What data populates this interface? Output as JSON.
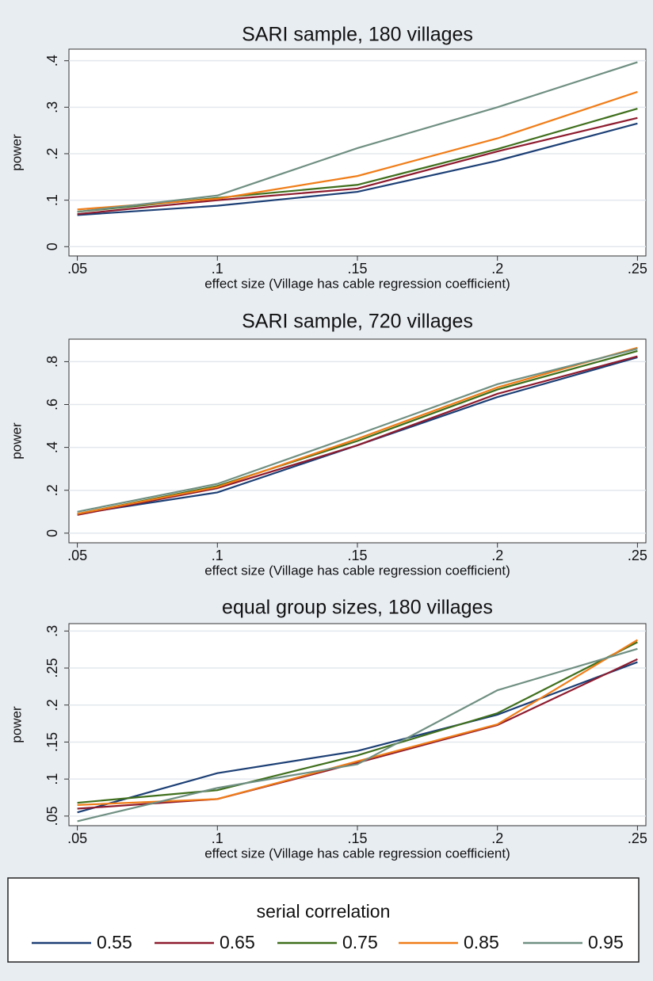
{
  "chart_data": [
    {
      "type": "line",
      "title": "SARI sample, 180 villages",
      "x_label": "effect size (Village has cable regression coefficient)",
      "y_label": "power",
      "x": [
        0.05,
        0.1,
        0.15,
        0.2,
        0.25
      ],
      "xlim": [
        0.047,
        0.253
      ],
      "xticks": [
        {
          "value": 0.05,
          "label": ".05"
        },
        {
          "value": 0.1,
          "label": ".1"
        },
        {
          "value": 0.15,
          "label": ".15"
        },
        {
          "value": 0.2,
          "label": ".2"
        },
        {
          "value": 0.25,
          "label": ".25"
        }
      ],
      "ylim": [
        -0.02,
        0.425
      ],
      "yticks": [
        0,
        {
          "value": 0.1,
          "label": ".1"
        },
        {
          "value": 0.2,
          "label": ".2"
        },
        {
          "value": 0.3,
          "label": ".3"
        },
        {
          "value": 0.4,
          "label": ".4"
        }
      ],
      "grid": true,
      "series": [
        {
          "name": "0.55",
          "color": "#1c3f75",
          "values": [
            0.068,
            0.088,
            0.118,
            0.185,
            0.265
          ]
        },
        {
          "name": "0.65",
          "color": "#8e1b2e",
          "values": [
            0.07,
            0.1,
            0.125,
            0.205,
            0.277
          ]
        },
        {
          "name": "0.75",
          "color": "#3f6f1c",
          "values": [
            0.075,
            0.105,
            0.133,
            0.21,
            0.297
          ]
        },
        {
          "name": "0.85",
          "color": "#f07d18",
          "values": [
            0.08,
            0.103,
            0.152,
            0.233,
            0.333
          ]
        },
        {
          "name": "0.95",
          "color": "#6f8f82",
          "values": [
            0.075,
            0.11,
            0.212,
            0.3,
            0.397
          ]
        }
      ]
    },
    {
      "type": "line",
      "title": "SARI sample, 720 villages",
      "x_label": "effect size (Village has cable regression coefficient)",
      "y_label": "power",
      "x": [
        0.05,
        0.1,
        0.15,
        0.2,
        0.25
      ],
      "xlim": [
        0.047,
        0.253
      ],
      "xticks": [
        {
          "value": 0.05,
          "label": ".05"
        },
        {
          "value": 0.1,
          "label": ".1"
        },
        {
          "value": 0.15,
          "label": ".15"
        },
        {
          "value": 0.2,
          "label": ".2"
        },
        {
          "value": 0.25,
          "label": ".25"
        }
      ],
      "ylim": [
        -0.045,
        0.905
      ],
      "yticks": [
        0,
        {
          "value": 0.2,
          "label": ".2"
        },
        {
          "value": 0.4,
          "label": ".4"
        },
        {
          "value": 0.6,
          "label": ".6"
        },
        {
          "value": 0.8,
          "label": ".8"
        }
      ],
      "grid": true,
      "series": [
        {
          "name": "0.55",
          "color": "#1c3f75",
          "values": [
            0.09,
            0.19,
            0.41,
            0.635,
            0.82
          ]
        },
        {
          "name": "0.65",
          "color": "#8e1b2e",
          "values": [
            0.085,
            0.21,
            0.41,
            0.65,
            0.825
          ]
        },
        {
          "name": "0.75",
          "color": "#3f6f1c",
          "values": [
            0.09,
            0.22,
            0.43,
            0.67,
            0.85
          ]
        },
        {
          "name": "0.85",
          "color": "#f07d18",
          "values": [
            0.09,
            0.215,
            0.44,
            0.68,
            0.865
          ]
        },
        {
          "name": "0.95",
          "color": "#6f8f82",
          "values": [
            0.1,
            0.23,
            0.46,
            0.695,
            0.86
          ]
        }
      ]
    },
    {
      "type": "line",
      "title": "equal group sizes, 180 villages",
      "x_label": "effect size (Village has cable regression coefficient)",
      "y_label": "power",
      "x": [
        0.05,
        0.1,
        0.15,
        0.2,
        0.25
      ],
      "xlim": [
        0.047,
        0.253
      ],
      "xticks": [
        {
          "value": 0.05,
          "label": ".05"
        },
        {
          "value": 0.1,
          "label": ".1"
        },
        {
          "value": 0.15,
          "label": ".15"
        },
        {
          "value": 0.2,
          "label": ".2"
        },
        {
          "value": 0.25,
          "label": ".25"
        }
      ],
      "ylim": [
        0.037,
        0.31
      ],
      "yticks": [
        {
          "value": 0.05,
          "label": ".05"
        },
        {
          "value": 0.1,
          "label": ".1"
        },
        {
          "value": 0.15,
          "label": ".15"
        },
        {
          "value": 0.2,
          "label": ".2"
        },
        {
          "value": 0.25,
          "label": ".25"
        },
        {
          "value": 0.3,
          "label": ".3"
        }
      ],
      "grid": true,
      "series": [
        {
          "name": "0.55",
          "color": "#1c3f75",
          "values": [
            0.055,
            0.108,
            0.138,
            0.187,
            0.258
          ]
        },
        {
          "name": "0.65",
          "color": "#8e1b2e",
          "values": [
            0.06,
            0.073,
            0.122,
            0.173,
            0.262
          ]
        },
        {
          "name": "0.75",
          "color": "#3f6f1c",
          "values": [
            0.068,
            0.085,
            0.132,
            0.189,
            0.285
          ]
        },
        {
          "name": "0.85",
          "color": "#f07d18",
          "values": [
            0.065,
            0.073,
            0.124,
            0.174,
            0.288
          ]
        },
        {
          "name": "0.95",
          "color": "#6f8f82",
          "values": [
            0.043,
            0.088,
            0.12,
            0.22,
            0.276
          ]
        }
      ]
    }
  ],
  "legend": {
    "title": "serial correlation"
  }
}
